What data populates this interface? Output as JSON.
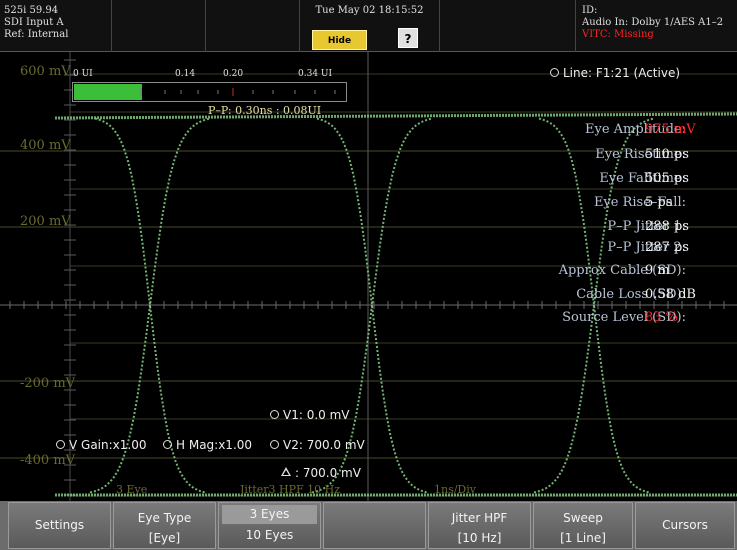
{
  "topbar": {
    "format": "525i 59.94",
    "input": "SDI Input A",
    "ref": "Ref: Internal",
    "datetime": "Tue May 02 18:15:52",
    "hide_menu": "Hide Menu",
    "help": "?",
    "id_label": "ID:",
    "audio_in": "Audio In: Dolby 1/AES A1–2",
    "vitc": "VITC: Missing"
  },
  "graph": {
    "y_labels": [
      "600 mV",
      "400 mV",
      "200 mV",
      "-200 mV",
      "-400 mV"
    ],
    "meter": {
      "scale": [
        "0 UI",
        "0.14",
        "0.20",
        "0.34 UI"
      ],
      "fill_fraction": 0.25
    },
    "pp_label": "P–P: 0.30ns : 0.08UI",
    "line_label": "Line: F1:21 (Active)",
    "measurements": [
      {
        "label": "Eye Amplitude:",
        "value": "975 mV",
        "alert": true
      },
      {
        "label": "Eye Risetime:",
        "value": "510 ps",
        "alert": false
      },
      {
        "label": "Eye Falltime:",
        "value": "505 ps",
        "alert": false
      },
      {
        "label": "Eye Rise–Fall:",
        "value": "5 ps",
        "alert": false
      },
      {
        "label": "P–P Jitter 1:",
        "value": "288 ps",
        "alert": false
      },
      {
        "label": "P–P Jitter 2:",
        "value": "287 ps",
        "alert": false
      },
      {
        "label": "Approx Cable (SD):",
        "value": "9 m",
        "alert": false
      },
      {
        "label": "Cable Loss (SD):",
        "value": "0.58 dB",
        "alert": false
      },
      {
        "label": "Source Level (SD):",
        "value": "83 %",
        "alert": true
      }
    ],
    "cursors": {
      "v1": "V1: 0.0 mV",
      "v2": "V2: 700.0 mV",
      "delta": ": 700.0 mV",
      "vgain": "V Gain:x1.00",
      "hmag": "H Mag:x1.00"
    },
    "bottom_hints": [
      "3 Eye",
      "Jitter3 HPF 10 Hz",
      "1ns/Div"
    ]
  },
  "softkeys": {
    "settings": "Settings",
    "eye_type": "Eye Type",
    "eye_type_val": "[Eye]",
    "eyes_opt1": "3 Eyes",
    "eyes_opt2": "10 Eyes",
    "jitter_hpf": "Jitter HPF",
    "jitter_hpf_val": "[10 Hz]",
    "sweep": "Sweep",
    "sweep_val": "[1 Line]",
    "cursors": "Cursors"
  },
  "colors": {
    "trace": "#7fc77f",
    "meter_fill": "#3bbf3b",
    "alert": "#ff2a2a",
    "hide_menu_bg": "#e8c830"
  }
}
